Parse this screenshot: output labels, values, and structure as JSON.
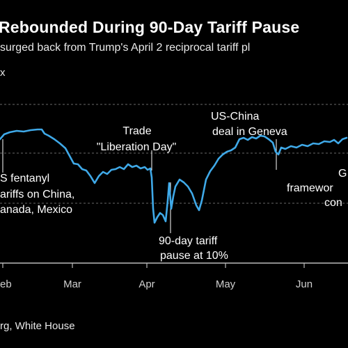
{
  "chart_data": {
    "type": "line",
    "title": "Rebounded During 90-Day Tariff Pause",
    "subtitle": "surged back from Trump's April 2 reciprocal tariff pl",
    "ylabel": "x",
    "source": "rg, White House",
    "x_ticks": [
      "eb",
      "Mar",
      "Apr",
      "May",
      "Jun"
    ],
    "grid": true,
    "line_color": "#3fa9e8",
    "series": [
      {
        "values": [
          [
            0,
            200
          ],
          [
            6,
            193
          ],
          [
            14,
            190
          ],
          [
            24,
            188
          ],
          [
            34,
            189
          ],
          [
            44,
            187
          ],
          [
            54,
            186
          ],
          [
            60,
            186
          ],
          [
            64,
            192
          ],
          [
            70,
            195
          ],
          [
            78,
            200
          ],
          [
            86,
            206
          ],
          [
            94,
            213
          ],
          [
            100,
            224
          ],
          [
            106,
            235
          ],
          [
            112,
            236
          ],
          [
            118,
            243
          ],
          [
            124,
            245
          ],
          [
            130,
            253
          ],
          [
            136,
            263
          ],
          [
            142,
            253
          ],
          [
            148,
            247
          ],
          [
            154,
            250
          ],
          [
            160,
            244
          ],
          [
            166,
            243
          ],
          [
            172,
            240
          ],
          [
            178,
            243
          ],
          [
            184,
            236
          ],
          [
            190,
            240
          ],
          [
            196,
            238
          ],
          [
            202,
            242
          ],
          [
            208,
            240
          ],
          [
            212,
            244
          ],
          [
            216,
            242
          ],
          [
            218,
            255
          ],
          [
            220,
            300
          ],
          [
            222,
            320
          ],
          [
            226,
            312
          ],
          [
            230,
            306
          ],
          [
            234,
            309
          ],
          [
            238,
            318
          ],
          [
            241,
            288
          ],
          [
            243,
            263
          ],
          [
            246,
            300
          ],
          [
            249,
            282
          ],
          [
            252,
            268
          ],
          [
            258,
            258
          ],
          [
            264,
            262
          ],
          [
            270,
            268
          ],
          [
            276,
            278
          ],
          [
            282,
            295
          ],
          [
            286,
            302
          ],
          [
            290,
            288
          ],
          [
            296,
            258
          ],
          [
            302,
            246
          ],
          [
            308,
            238
          ],
          [
            314,
            228
          ],
          [
            320,
            222
          ],
          [
            326,
            218
          ],
          [
            332,
            216
          ],
          [
            338,
            212
          ],
          [
            344,
            200
          ],
          [
            350,
            198
          ],
          [
            356,
            201
          ],
          [
            362,
            197
          ],
          [
            368,
            199
          ],
          [
            374,
            195
          ],
          [
            380,
            196
          ],
          [
            386,
            200
          ],
          [
            392,
            205
          ],
          [
            396,
            218
          ],
          [
            400,
            222
          ],
          [
            404,
            212
          ],
          [
            410,
            214
          ],
          [
            418,
            210
          ],
          [
            426,
            212
          ],
          [
            434,
            208
          ],
          [
            442,
            210
          ],
          [
            450,
            206
          ],
          [
            458,
            207
          ],
          [
            466,
            203
          ],
          [
            474,
            204
          ],
          [
            480,
            201
          ],
          [
            486,
            206
          ],
          [
            492,
            200
          ],
          [
            498,
            198
          ]
        ]
      }
    ],
    "annotations": [
      {
        "label": "S fentanyl"
      },
      {
        "label": "ariffs on China,"
      },
      {
        "label": "anada, Mexico"
      },
      {
        "label": "Trade"
      },
      {
        "label": "\"Liberation Day\""
      },
      {
        "label": "US-China"
      },
      {
        "label": "deal in Geneva"
      },
      {
        "label": "90-day tariff"
      },
      {
        "label": "pause at 10%"
      },
      {
        "label": "G"
      },
      {
        "label": "framewor"
      },
      {
        "label": "con"
      }
    ]
  }
}
